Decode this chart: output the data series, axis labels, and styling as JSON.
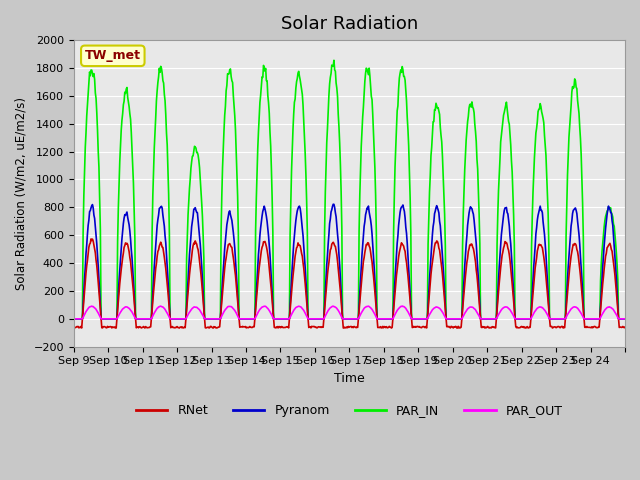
{
  "title": "Solar Radiation",
  "ylabel": "Solar Radiation (W/m2, uE/m2/s)",
  "xlabel": "Time",
  "ylim": [
    -200,
    2000
  ],
  "yticks": [
    -200,
    0,
    200,
    400,
    600,
    800,
    1000,
    1200,
    1400,
    1600,
    1800,
    2000
  ],
  "series_colors": {
    "RNet": "#cc0000",
    "Pyranom": "#0000cc",
    "PAR_IN": "#00ee00",
    "PAR_OUT": "#ff00ff"
  },
  "station_label": "TW_met",
  "station_label_color": "#8b0000",
  "station_box_color": "#ffffcc",
  "station_box_edge": "#cccc00",
  "x_tick_labels": [
    "Sep 9",
    "Sep 10",
    "Sep 11",
    "Sep 12",
    "Sep 13",
    "Sep 14",
    "Sep 15",
    "Sep 16",
    "Sep 17",
    "Sep 18",
    "Sep 19",
    "Sep 20",
    "Sep 21",
    "Sep 22",
    "Sep 23",
    "Sep 24",
    ""
  ],
  "x_tick_positions": [
    0,
    1,
    2,
    3,
    4,
    5,
    6,
    7,
    8,
    9,
    10,
    11,
    12,
    13,
    14,
    15,
    16
  ],
  "num_days": 16,
  "line_width": 1.2,
  "par_in_peaks": [
    1800,
    1640,
    1800,
    1230,
    1790,
    1790,
    1770,
    1830,
    1790,
    1800,
    1530,
    1550,
    1530,
    1530,
    1700,
    800
  ],
  "pyranom_peaks": [
    810,
    760,
    810,
    800,
    760,
    800,
    800,
    820,
    800,
    810,
    800,
    800,
    800,
    800,
    800,
    800
  ],
  "rnet_peaks": [
    570,
    540,
    540,
    550,
    540,
    550,
    540,
    550,
    540,
    540,
    550,
    540,
    550,
    540,
    540,
    540
  ],
  "par_out_peaks": [
    90,
    85,
    90,
    85,
    90,
    90,
    90,
    90,
    90,
    90,
    85,
    85,
    85,
    85,
    85,
    85
  ],
  "rnet_night": -60,
  "sunrise_idx": 12,
  "sunset_idx": 38,
  "pts_per_day": 48
}
